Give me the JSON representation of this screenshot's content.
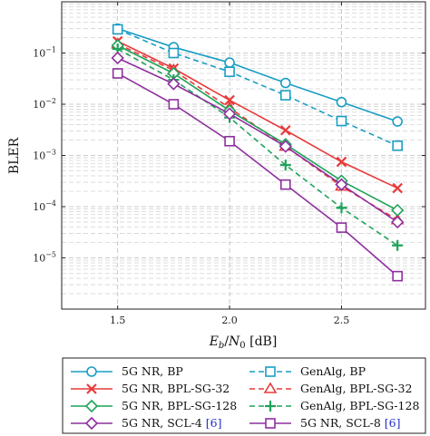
{
  "chart_data": {
    "type": "line",
    "title": "",
    "xlabel": "E_b/N_0 [dB]",
    "ylabel": "BLER",
    "x": [
      1.5,
      1.75,
      2.0,
      2.25,
      2.5,
      2.75
    ],
    "xlim": [
      1.25,
      2.875
    ],
    "ylim": [
      1e-06,
      1
    ],
    "yscale": "log",
    "xticks": [
      "1.5",
      "2.0",
      "2.5"
    ],
    "yticks": [
      {
        "base": "10",
        "exp": "−1",
        "value": 0.1
      },
      {
        "base": "10",
        "exp": "−2",
        "value": 0.01
      },
      {
        "base": "10",
        "exp": "−3",
        "value": 0.001
      },
      {
        "base": "10",
        "exp": "−4",
        "value": 0.0001
      },
      {
        "base": "10",
        "exp": "−5",
        "value": 1e-05
      }
    ],
    "grid": true,
    "legend_position": "below",
    "series": [
      {
        "name": "5G NR, BP",
        "ref": "",
        "color": "#1a9dc4",
        "marker": "circle",
        "dash": "solid",
        "values": [
          0.3,
          0.13,
          0.065,
          0.026,
          0.011,
          0.0046
        ]
      },
      {
        "name": "GenAlg, BP",
        "ref": "",
        "color": "#1a9dc4",
        "marker": "square",
        "dash": "dashed",
        "values": [
          0.29,
          0.1,
          0.043,
          0.015,
          0.0047,
          0.00155
        ]
      },
      {
        "name": "5G NR, BPL-SG-32",
        "ref": "",
        "color": "#e83a3a",
        "marker": "x",
        "dash": "solid",
        "values": [
          0.17,
          0.05,
          0.012,
          0.0031,
          0.00075,
          0.00023
        ]
      },
      {
        "name": "GenAlg, BPL-SG-32",
        "ref": "",
        "color": "#e83a3a",
        "marker": "triangle",
        "dash": "dashed",
        "values": [
          0.15,
          0.046,
          0.0085,
          0.0015,
          0.00025,
          5.5e-05
        ]
      },
      {
        "name": "5G NR, BPL-SG-128",
        "ref": "",
        "color": "#1fa35a",
        "marker": "diamond",
        "dash": "solid",
        "values": [
          0.14,
          0.04,
          0.0075,
          0.00165,
          0.00032,
          8.5e-05
        ]
      },
      {
        "name": "GenAlg, BPL-SG-128",
        "ref": "",
        "color": "#1fa35a",
        "marker": "plus",
        "dash": "dashed",
        "values": [
          0.12,
          0.03,
          0.0055,
          0.00065,
          9.5e-05,
          1.75e-05
        ]
      },
      {
        "name": "5G NR, SCL-4",
        "ref": "[6]",
        "color": "#8e2f9e",
        "marker": "diamond",
        "dash": "solid",
        "values": [
          0.08,
          0.025,
          0.0065,
          0.0015,
          0.00027,
          5e-05
        ]
      },
      {
        "name": "5G NR, SCL-8",
        "ref": "[6]",
        "color": "#8e2f9e",
        "marker": "square",
        "dash": "solid",
        "values": [
          0.04,
          0.01,
          0.0019,
          0.00027,
          3.9e-05,
          4.4e-06
        ]
      }
    ]
  }
}
